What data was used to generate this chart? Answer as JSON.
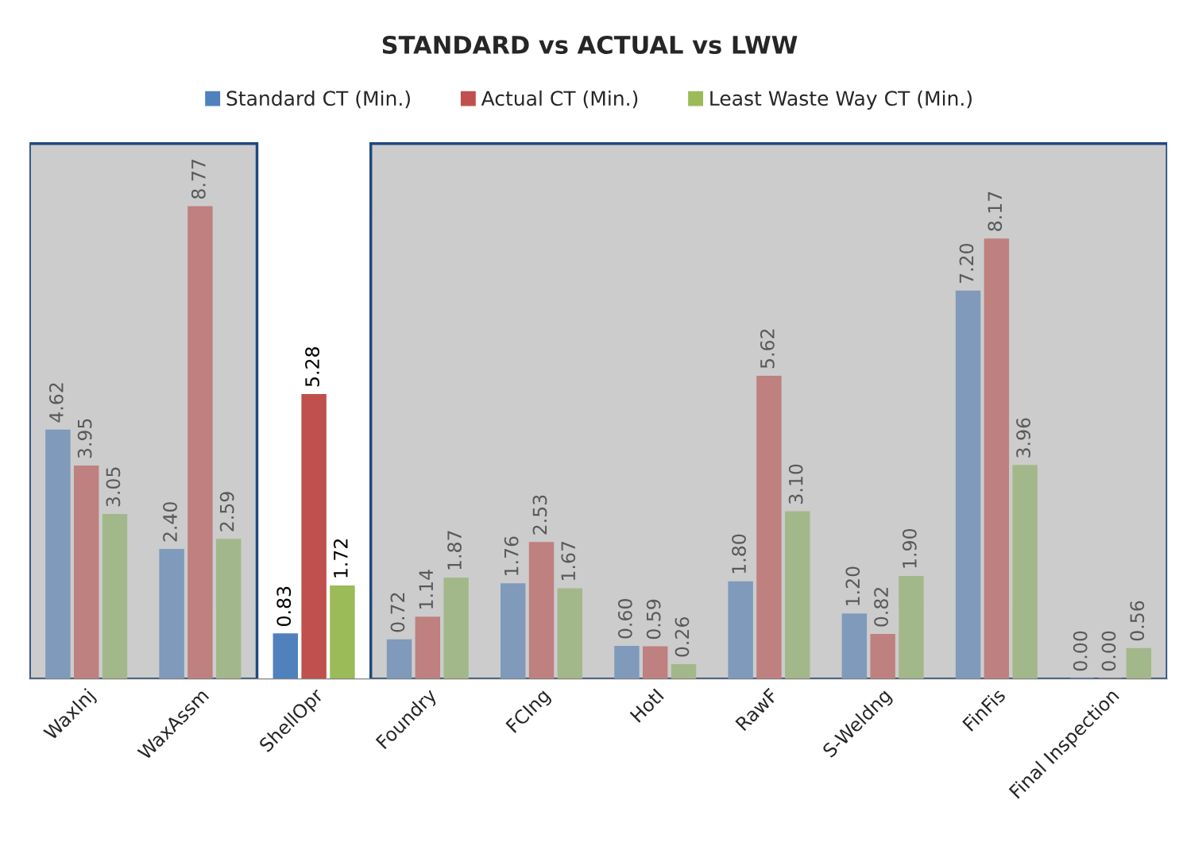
{
  "chart_data": {
    "type": "bar",
    "title": "STANDARD vs ACTUAL vs LWW",
    "categories": [
      "WaxInj",
      "WaxAssm",
      "ShellOpr",
      "Foundry",
      "FCIng",
      "HotI",
      "RawF",
      "S-Weldng",
      "FinFis",
      "Final Inspection"
    ],
    "series": [
      {
        "name": "Standard CT (Min.)",
        "color": "#4f81bd",
        "colors": [
          "#7f9aba",
          "#7f9aba",
          "#4f81bd",
          "#7f9aba",
          "#7f9aba",
          "#7f9aba",
          "#7f9aba",
          "#7f9aba",
          "#7f9aba",
          "#7f9aba"
        ],
        "values": [
          4.62,
          2.4,
          0.83,
          0.72,
          1.76,
          0.6,
          1.8,
          1.2,
          7.2,
          0.0
        ],
        "value_labels": [
          "4.62",
          "2.40",
          "0.83",
          "0.72",
          "1.76",
          "0.60",
          "1.80",
          "1.20",
          "7.20",
          "0.00"
        ]
      },
      {
        "name": "Actual CT (Min.)",
        "color": "#c0504d",
        "colors": [
          "#bf8080",
          "#bf8080",
          "#c0504d",
          "#bf8080",
          "#bf8080",
          "#bf8080",
          "#bf8080",
          "#bf8080",
          "#bf8080",
          "#bf8080"
        ],
        "values": [
          3.95,
          8.77,
          5.28,
          1.14,
          2.53,
          0.59,
          5.62,
          0.82,
          8.17,
          0.0
        ],
        "value_labels": [
          "3.95",
          "8.77",
          "5.28",
          "1.14",
          "2.53",
          "0.59",
          "5.62",
          "0.82",
          "8.17",
          "0.00"
        ]
      },
      {
        "name": "Least Waste Way CT (Min.)",
        "color": "#9bbb59",
        "colors": [
          "#a3b88a",
          "#a3b88a",
          "#9bbb59",
          "#a3b88a",
          "#a3b88a",
          "#a3b88a",
          "#a3b88a",
          "#a3b88a",
          "#a3b88a",
          "#a3b88a"
        ],
        "values": [
          3.05,
          2.59,
          1.72,
          1.87,
          1.67,
          0.26,
          3.1,
          1.9,
          3.96,
          0.56
        ],
        "value_labels": [
          "3.05",
          "2.59",
          "1.72",
          "1.87",
          "1.67",
          "0.26",
          "3.10",
          "1.90",
          "3.96",
          "0.56"
        ]
      }
    ],
    "bands": [
      {
        "axis": "x",
        "from": "WaxInj",
        "to": "WaxAssm",
        "color": "#cccccc"
      },
      {
        "axis": "x",
        "from": "Foundry",
        "to": "Final Inspection",
        "color": "#cccccc"
      }
    ],
    "legend": "top",
    "grid": false
  }
}
